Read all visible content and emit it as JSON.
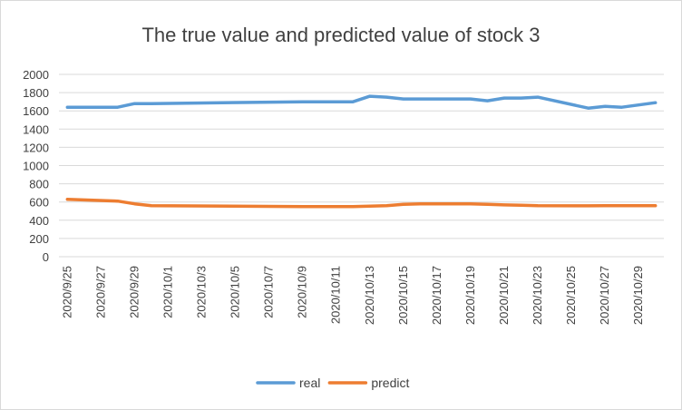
{
  "chart_data": {
    "type": "line",
    "title": "The true value and predicted value of stock  3",
    "xlabel": "",
    "ylabel": "",
    "ylim": [
      0,
      2000
    ],
    "y_ticks": [
      0,
      200,
      400,
      600,
      800,
      1000,
      1200,
      1400,
      1600,
      1800,
      2000
    ],
    "grid": true,
    "legend_position": "bottom",
    "x_dates": [
      "2020/9/25",
      "2020/9/26",
      "2020/9/27",
      "2020/9/28",
      "2020/9/29",
      "2020/9/30",
      "2020/10/1",
      "2020/10/2",
      "2020/10/3",
      "2020/10/4",
      "2020/10/5",
      "2020/10/6",
      "2020/10/7",
      "2020/10/8",
      "2020/10/9",
      "2020/10/10",
      "2020/10/11",
      "2020/10/12",
      "2020/10/13",
      "2020/10/14",
      "2020/10/15",
      "2020/10/16",
      "2020/10/17",
      "2020/10/18",
      "2020/10/19",
      "2020/10/20",
      "2020/10/21",
      "2020/10/22",
      "2020/10/23",
      "2020/10/24",
      "2020/10/25",
      "2020/10/26",
      "2020/10/27",
      "2020/10/28",
      "2020/10/29",
      "2020/10/30"
    ],
    "x_tick_labels": [
      "2020/9/25",
      "2020/9/27",
      "2020/9/29",
      "2020/10/1",
      "2020/10/3",
      "2020/10/5",
      "2020/10/7",
      "2020/10/9",
      "2020/10/11",
      "2020/10/13",
      "2020/10/15",
      "2020/10/17",
      "2020/10/19",
      "2020/10/21",
      "2020/10/23",
      "2020/10/25",
      "2020/10/27",
      "2020/10/29"
    ],
    "series": [
      {
        "name": "real",
        "color": "#5b9bd5",
        "points": [
          [
            "2020/9/25",
            1640
          ],
          [
            "2020/9/28",
            1640
          ],
          [
            "2020/9/29",
            1680
          ],
          [
            "2020/9/30",
            1680
          ],
          [
            "2020/10/9",
            1700
          ],
          [
            "2020/10/12",
            1700
          ],
          [
            "2020/10/13",
            1760
          ],
          [
            "2020/10/14",
            1750
          ],
          [
            "2020/10/15",
            1730
          ],
          [
            "2020/10/16",
            1730
          ],
          [
            "2020/10/19",
            1730
          ],
          [
            "2020/10/20",
            1710
          ],
          [
            "2020/10/21",
            1740
          ],
          [
            "2020/10/22",
            1740
          ],
          [
            "2020/10/23",
            1750
          ],
          [
            "2020/10/26",
            1630
          ],
          [
            "2020/10/27",
            1650
          ],
          [
            "2020/10/28",
            1640
          ],
          [
            "2020/10/30",
            1690
          ]
        ]
      },
      {
        "name": "predict",
        "color": "#ed7d31",
        "points": [
          [
            "2020/9/25",
            630
          ],
          [
            "2020/9/28",
            610
          ],
          [
            "2020/9/29",
            580
          ],
          [
            "2020/9/30",
            560
          ],
          [
            "2020/10/9",
            550
          ],
          [
            "2020/10/12",
            550
          ],
          [
            "2020/10/13",
            555
          ],
          [
            "2020/10/14",
            560
          ],
          [
            "2020/10/15",
            575
          ],
          [
            "2020/10/16",
            580
          ],
          [
            "2020/10/19",
            580
          ],
          [
            "2020/10/20",
            575
          ],
          [
            "2020/10/21",
            568
          ],
          [
            "2020/10/22",
            565
          ],
          [
            "2020/10/23",
            560
          ],
          [
            "2020/10/26",
            558
          ],
          [
            "2020/10/27",
            560
          ],
          [
            "2020/10/28",
            560
          ],
          [
            "2020/10/30",
            560
          ]
        ]
      }
    ]
  },
  "colors": {
    "gridline": "#d9d9d9",
    "axis_text": "#404040",
    "background": "#ffffff"
  }
}
